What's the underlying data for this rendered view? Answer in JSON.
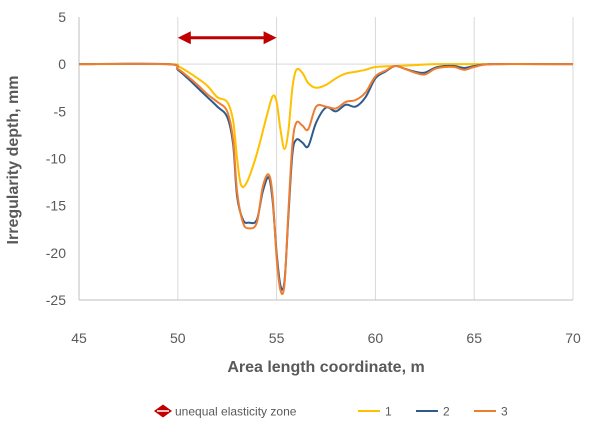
{
  "chart_data": {
    "type": "line",
    "xlabel": "Area length coordinate,  m",
    "ylabel": "Irregularity  depth,  mm",
    "xlim": [
      45,
      70
    ],
    "ylim": [
      -25,
      5
    ],
    "xticks": [
      "45",
      "50",
      "55",
      "60",
      "65",
      "70"
    ],
    "yticks": [
      "5",
      "0",
      "-5",
      "-10",
      "-15",
      "-20",
      "-25"
    ],
    "grid": "vertical",
    "legend_position": "bottom",
    "annotation": {
      "label": "unequal elasticity zone",
      "x_start": 50,
      "x_end": 55,
      "y": 2.8,
      "color": "#C00000"
    },
    "series": [
      {
        "name": "1",
        "color": "#FFC000",
        "x": [
          45,
          49.5,
          50,
          50.5,
          51,
          51.5,
          52,
          52.5,
          52.8,
          53,
          53.2,
          53.5,
          54,
          54.5,
          54.8,
          55,
          55.2,
          55.4,
          55.6,
          55.8,
          56,
          56.3,
          56.6,
          57,
          57.5,
          58,
          58.5,
          59,
          59.5,
          60,
          61,
          62,
          63,
          65,
          70
        ],
        "y": [
          0,
          0,
          -0.2,
          -0.8,
          -1.5,
          -2.3,
          -3.5,
          -4.0,
          -6.0,
          -10.0,
          -12.8,
          -12.5,
          -9.5,
          -5.5,
          -3.4,
          -4.0,
          -7.0,
          -9.0,
          -7.0,
          -2.5,
          -0.6,
          -0.9,
          -2.0,
          -2.5,
          -2.2,
          -1.5,
          -1.0,
          -0.8,
          -0.6,
          -0.3,
          -0.2,
          -0.1,
          0,
          0,
          0
        ]
      },
      {
        "name": "2",
        "color": "#2E5B8C",
        "x": [
          45,
          49.5,
          50,
          50.5,
          51,
          51.5,
          52,
          52.5,
          52.8,
          53,
          53.3,
          53.6,
          54,
          54.3,
          54.6,
          54.8,
          55,
          55.2,
          55.4,
          55.6,
          55.8,
          56,
          56.3,
          56.6,
          57,
          57.5,
          58,
          58.5,
          59,
          59.5,
          60,
          60.5,
          61,
          61.5,
          62,
          62.5,
          63,
          63.5,
          64,
          64.5,
          65,
          66,
          70
        ],
        "y": [
          0,
          0,
          -0.6,
          -1.5,
          -2.5,
          -3.5,
          -4.5,
          -5.6,
          -8.5,
          -14.0,
          -16.5,
          -16.8,
          -16.5,
          -13.5,
          -12.0,
          -14.5,
          -20.0,
          -23.5,
          -23.0,
          -16.0,
          -9.5,
          -8.0,
          -8.3,
          -8.7,
          -6.2,
          -4.6,
          -5.0,
          -4.3,
          -4.5,
          -3.5,
          -1.5,
          -0.8,
          -0.2,
          -0.5,
          -0.8,
          -0.9,
          -0.4,
          -0.2,
          -0.2,
          -0.4,
          -0.2,
          0,
          0
        ]
      },
      {
        "name": "3",
        "color": "#ED7D31",
        "x": [
          45,
          49.5,
          50,
          50.5,
          51,
          51.5,
          52,
          52.5,
          52.8,
          53,
          53.3,
          53.6,
          54,
          54.3,
          54.6,
          54.8,
          55,
          55.2,
          55.4,
          55.6,
          55.8,
          56,
          56.3,
          56.6,
          57,
          57.5,
          58,
          58.5,
          59,
          59.5,
          60,
          60.5,
          61,
          61.5,
          62,
          62.5,
          63,
          63.5,
          64,
          64.5,
          65,
          66,
          70
        ],
        "y": [
          0,
          0,
          -0.5,
          -1.3,
          -2.2,
          -3.2,
          -4.0,
          -5.0,
          -8.0,
          -13.5,
          -16.8,
          -17.4,
          -16.8,
          -13.0,
          -11.7,
          -14.0,
          -20.5,
          -24.0,
          -23.3,
          -15.5,
          -8.5,
          -6.2,
          -6.5,
          -6.9,
          -4.5,
          -4.5,
          -4.7,
          -4.0,
          -3.8,
          -3.0,
          -1.3,
          -0.7,
          -0.2,
          -0.5,
          -0.9,
          -1.1,
          -0.5,
          -0.3,
          -0.3,
          -0.6,
          -0.3,
          0,
          0
        ]
      }
    ]
  }
}
